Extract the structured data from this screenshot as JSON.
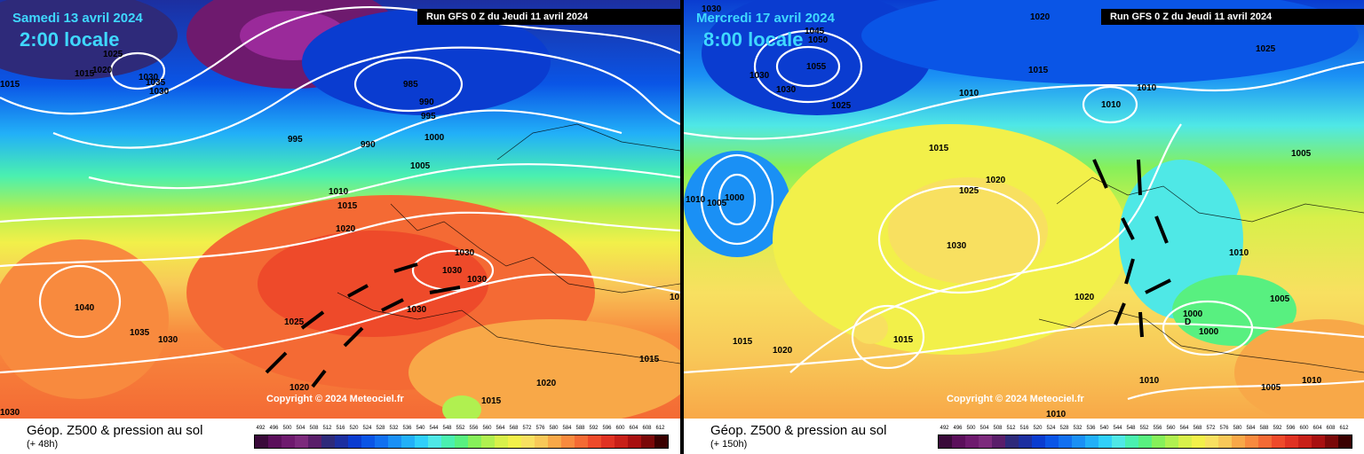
{
  "panels": [
    {
      "date_label": "Samedi 13 avril 2024",
      "time_label": "2:00 locale",
      "run_banner": "Run GFS 0 Z du Jeudi 11 avril 2024",
      "copyright": "Copyright © 2024 Meteociel.fr",
      "legend_title": "Géop. Z500 & pression au sol",
      "legend_sub": "(+ 48h)",
      "isobars": [
        "1015",
        "1025",
        "1020",
        "1030",
        "1035",
        "1030",
        "1015",
        "985",
        "990",
        "995",
        "995",
        "990",
        "1000",
        "1005",
        "1010",
        "1015",
        "1020",
        "1025",
        "1030",
        "1030",
        "1030",
        "1040",
        "1035",
        "1030",
        "1020",
        "1015",
        "1020",
        "1015",
        "1030",
        "10"
      ]
    },
    {
      "date_label": "Mercredi 17 avril 2024",
      "time_label": "8:00 locale",
      "run_banner": "Run GFS 0 Z du Jeudi 11 avril 2024",
      "copyright": "Copyright © 2024 Meteociel.fr",
      "legend_title": "Géop. Z500 & pression au sol",
      "legend_sub": "(+ 150h)",
      "isobars": [
        "1030",
        "1045",
        "1050",
        "1055",
        "1030",
        "1030",
        "1020",
        "1015",
        "1025",
        "1010",
        "1010",
        "1015",
        "1025",
        "1000",
        "1005",
        "1010",
        "1025",
        "1020",
        "1030",
        "1015",
        "1020",
        "1015",
        "1020",
        "1010",
        "1005",
        "1000",
        "1000",
        "D",
        "1010",
        "1005",
        "1010",
        "1010",
        "1005",
        "1010"
      ]
    }
  ],
  "scale": {
    "ticks": [
      "492",
      "496",
      "500",
      "504",
      "508",
      "512",
      "516",
      "520",
      "524",
      "528",
      "532",
      "536",
      "540",
      "544",
      "548",
      "552",
      "556",
      "560",
      "564",
      "568",
      "572",
      "576",
      "580",
      "584",
      "588",
      "592",
      "596",
      "600",
      "604",
      "608",
      "612"
    ],
    "colors": [
      "#3a0a3a",
      "#5b0f5b",
      "#6e1a6e",
      "#7c2a7c",
      "#5a1e6a",
      "#2e2a7a",
      "#1c2fa0",
      "#0a3cd0",
      "#0a55e6",
      "#1170f0",
      "#1a90f5",
      "#22b0f8",
      "#30d0fa",
      "#4fe8e6",
      "#4af0b0",
      "#58f080",
      "#86f05a",
      "#b0f050",
      "#d8f04a",
      "#f2f04a",
      "#f8e060",
      "#f8c858",
      "#f8a848",
      "#f88a3e",
      "#f46a34",
      "#ee4a2a",
      "#e03222",
      "#c82018",
      "#a81010",
      "#7a0808",
      "#3a0000"
    ]
  }
}
